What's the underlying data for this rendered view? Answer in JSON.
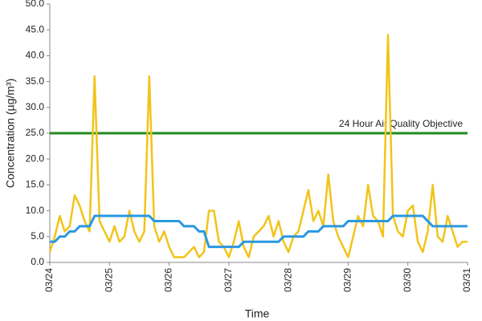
{
  "chart_data": {
    "type": "line",
    "xlabel": "Time",
    "ylabel": "Concentration (µg/m³)",
    "x": [
      0,
      2,
      4,
      6,
      8,
      10,
      12,
      14,
      16,
      18,
      20,
      22,
      24,
      26,
      28,
      30,
      32,
      34,
      36,
      38,
      40,
      42,
      44,
      46,
      48,
      50,
      52,
      54,
      56,
      58,
      60,
      62,
      64,
      66,
      68,
      70,
      72,
      74,
      76,
      78,
      80,
      82,
      84,
      86,
      88,
      90,
      92,
      94,
      96,
      98,
      100,
      102,
      104,
      106,
      108,
      110,
      112,
      114,
      116,
      118,
      120,
      122,
      124,
      126,
      128,
      130,
      132,
      134,
      136,
      138,
      140,
      142,
      144,
      146,
      148,
      150,
      152,
      154,
      156,
      158,
      160,
      162,
      164,
      166,
      168
    ],
    "series": [
      {
        "color": "#f2c418",
        "values": [
          2,
          5,
          9,
          6,
          7,
          13,
          11,
          8,
          6,
          36,
          8,
          6,
          4,
          7,
          4,
          5,
          10,
          6,
          4,
          6,
          36,
          7,
          4,
          6,
          3,
          1,
          1,
          1,
          2,
          3,
          1,
          2,
          10,
          10,
          4,
          3,
          1,
          4,
          8,
          3,
          1,
          5,
          6,
          7,
          9,
          5,
          8,
          4,
          2,
          5,
          6,
          10,
          14,
          8,
          10,
          7,
          17,
          8,
          5,
          3,
          1,
          5,
          9,
          7,
          15,
          9,
          8,
          5,
          44,
          9,
          6,
          5,
          10,
          11,
          4,
          2,
          6,
          15,
          5,
          4,
          9,
          6,
          3,
          4,
          4
        ]
      },
      {
        "color": "#2a98e0",
        "values": [
          4,
          4,
          5,
          5,
          6,
          6,
          7,
          7,
          7,
          9,
          9,
          9,
          9,
          9,
          9,
          9,
          9,
          9,
          9,
          9,
          9,
          8,
          8,
          8,
          8,
          8,
          8,
          7,
          7,
          7,
          6,
          6,
          3,
          3,
          3,
          3,
          3,
          3,
          3,
          4,
          4,
          4,
          4,
          4,
          4,
          4,
          4,
          5,
          5,
          5,
          5,
          5,
          6,
          6,
          6,
          7,
          7,
          7,
          7,
          7,
          8,
          8,
          8,
          8,
          8,
          8,
          8,
          8,
          8,
          9,
          9,
          9,
          9,
          9,
          9,
          9,
          8,
          7,
          7,
          7,
          7,
          7,
          7,
          7,
          7
        ]
      }
    ],
    "hlines": [
      {
        "label": "24 Hour Air Quality Objective",
        "value": 25,
        "color": "#1f8a1f"
      }
    ],
    "xlim": [
      0,
      168
    ],
    "xticks": [
      {
        "value": 0,
        "label": "03/24"
      },
      {
        "value": 24,
        "label": "03/25"
      },
      {
        "value": 48,
        "label": "03/26"
      },
      {
        "value": 72,
        "label": "03/27"
      },
      {
        "value": 96,
        "label": "03/28"
      },
      {
        "value": 120,
        "label": "03/29"
      },
      {
        "value": 144,
        "label": "03/30"
      },
      {
        "value": 168,
        "label": "03/31"
      }
    ],
    "ylim": [
      0,
      50
    ],
    "yticks": [
      {
        "value": 0,
        "label": "0.0"
      },
      {
        "value": 5,
        "label": "5.0"
      },
      {
        "value": 10,
        "label": "10.0"
      },
      {
        "value": 15,
        "label": "15.0"
      },
      {
        "value": 20,
        "label": "20.0"
      },
      {
        "value": 25,
        "label": "25.0"
      },
      {
        "value": 30,
        "label": "30.0"
      },
      {
        "value": 35,
        "label": "35.0"
      },
      {
        "value": 40,
        "label": "40.0"
      },
      {
        "value": 45,
        "label": "45.0"
      },
      {
        "value": 50,
        "label": "50.0"
      }
    ],
    "grid": false
  }
}
